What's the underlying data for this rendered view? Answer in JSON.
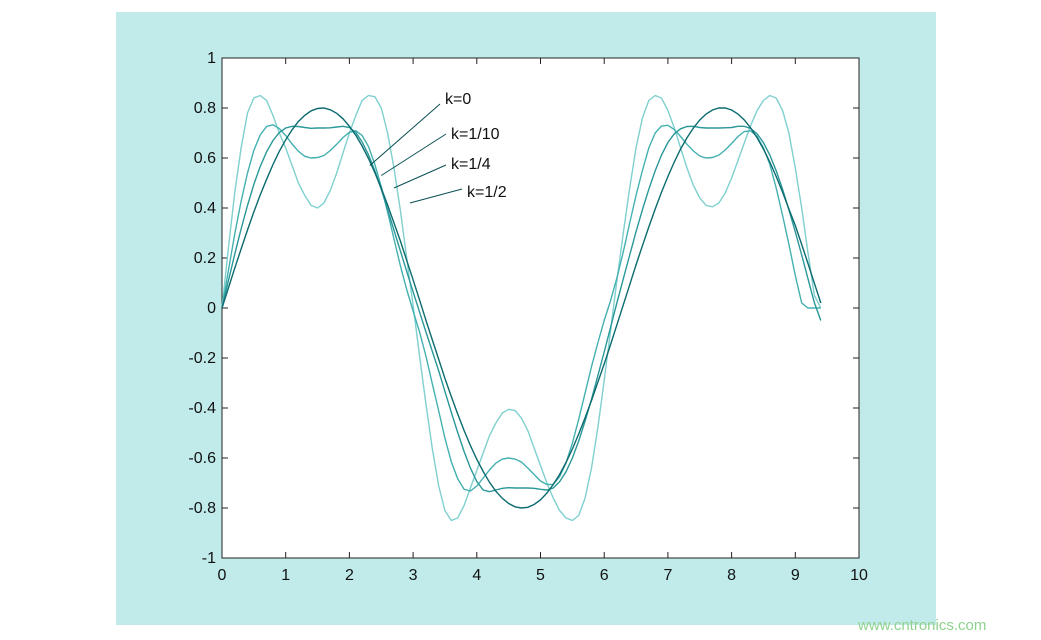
{
  "chart_data": {
    "type": "line",
    "xlim": [
      0,
      10
    ],
    "ylim": [
      -1,
      1
    ],
    "x_ticks": [
      "0",
      "1",
      "2",
      "3",
      "4",
      "5",
      "6",
      "7",
      "8",
      "9",
      "10"
    ],
    "y_ticks": [
      "1",
      "0.8",
      "0.6",
      "0.4",
      "0.2",
      "0",
      "-0.2",
      "-0.4",
      "-0.6",
      "-0.8",
      "-1"
    ],
    "grid": false,
    "x": [
      0,
      0.1,
      0.2,
      0.3,
      0.4,
      0.5,
      0.6,
      0.7,
      0.8,
      0.9,
      1.0,
      1.1,
      1.2,
      1.3,
      1.4,
      1.5,
      1.6,
      1.7,
      1.8,
      1.9,
      2.0,
      2.1,
      2.2,
      2.3,
      2.4,
      2.5,
      2.6,
      2.7,
      2.8,
      2.9,
      3.0,
      3.1,
      3.2,
      3.3,
      3.4,
      3.5,
      3.6,
      3.7,
      3.8,
      3.9,
      4.0,
      4.1,
      4.2,
      4.3,
      4.4,
      4.5,
      4.6,
      4.7,
      4.8,
      4.9,
      5.0,
      5.1,
      5.2,
      5.3,
      5.4,
      5.5,
      5.6,
      5.7,
      5.8,
      5.9,
      6.0,
      6.1,
      6.2,
      6.3,
      6.4,
      6.5,
      6.6,
      6.7,
      6.8,
      6.9,
      7.0,
      7.1,
      7.2,
      7.3,
      7.4,
      7.5,
      7.6,
      7.7,
      7.8,
      7.9,
      8.0,
      8.1,
      8.2,
      8.3,
      8.4,
      8.5,
      8.6,
      8.7,
      8.8,
      8.9,
      9.0,
      9.1,
      9.2,
      9.3,
      9.4
    ],
    "series": [
      {
        "label": "k=0",
        "color": "#0b6b6e",
        "values": [
          0,
          0.08,
          0.159,
          0.236,
          0.312,
          0.384,
          0.452,
          0.515,
          0.574,
          0.627,
          0.673,
          0.713,
          0.746,
          0.771,
          0.789,
          0.798,
          0.8,
          0.793,
          0.779,
          0.757,
          0.727,
          0.691,
          0.648,
          0.598,
          0.541,
          0.479,
          0.412,
          0.34,
          0.268,
          0.191,
          0.113,
          0.033,
          -0.047,
          -0.126,
          -0.204,
          -0.281,
          -0.354,
          -0.424,
          -0.49,
          -0.55,
          -0.605,
          -0.654,
          -0.697,
          -0.733,
          -0.761,
          -0.782,
          -0.795,
          -0.8,
          -0.797,
          -0.786,
          -0.767,
          -0.74,
          -0.706,
          -0.666,
          -0.618,
          -0.564,
          -0.504,
          -0.439,
          -0.37,
          -0.297,
          -0.224,
          -0.146,
          -0.067,
          0.013,
          0.093,
          0.172,
          0.249,
          0.324,
          0.396,
          0.463,
          0.526,
          0.584,
          0.636,
          0.681,
          0.72,
          0.752,
          0.776,
          0.792,
          0.8,
          0.8,
          0.792,
          0.776,
          0.752,
          0.72,
          0.681,
          0.636,
          0.584,
          0.526,
          0.463,
          0.396,
          0.33,
          0.254,
          0.178,
          0.099,
          0.02
        ]
      },
      {
        "label": "k=1/10",
        "color": "#2a9799",
        "values": [
          0,
          0.109,
          0.215,
          0.316,
          0.41,
          0.494,
          0.566,
          0.625,
          0.67,
          0.702,
          0.72,
          0.727,
          0.726,
          0.722,
          0.719,
          0.72,
          0.72,
          0.721,
          0.724,
          0.727,
          0.722,
          0.702,
          0.665,
          0.613,
          0.548,
          0.474,
          0.394,
          0.311,
          0.228,
          0.147,
          0.065,
          -0.015,
          -0.094,
          -0.172,
          -0.25,
          -0.333,
          -0.417,
          -0.498,
          -0.574,
          -0.64,
          -0.694,
          -0.728,
          -0.735,
          -0.728,
          -0.721,
          -0.719,
          -0.72,
          -0.72,
          -0.72,
          -0.721,
          -0.725,
          -0.728,
          -0.72,
          -0.695,
          -0.655,
          -0.6,
          -0.532,
          -0.452,
          -0.365,
          -0.271,
          -0.176,
          -0.077,
          0.021,
          0.117,
          0.212,
          0.305,
          0.393,
          0.475,
          0.549,
          0.612,
          0.662,
          0.697,
          0.717,
          0.726,
          0.727,
          0.722,
          0.72,
          0.72,
          0.72,
          0.721,
          0.722,
          0.727,
          0.727,
          0.718,
          0.697,
          0.662,
          0.612,
          0.549,
          0.475,
          0.393,
          0.305,
          0.212,
          0.117,
          0.021,
          -0.05
        ]
      },
      {
        "label": "k=1/4",
        "color": "#45b0b0",
        "values": [
          0,
          0.15,
          0.295,
          0.427,
          0.54,
          0.63,
          0.692,
          0.726,
          0.733,
          0.718,
          0.69,
          0.656,
          0.627,
          0.607,
          0.6,
          0.602,
          0.61,
          0.63,
          0.655,
          0.682,
          0.703,
          0.709,
          0.69,
          0.646,
          0.574,
          0.485,
          0.384,
          0.276,
          0.169,
          0.074,
          -0.012,
          -0.095,
          -0.19,
          -0.301,
          -0.41,
          -0.52,
          -0.615,
          -0.683,
          -0.725,
          -0.732,
          -0.712,
          -0.68,
          -0.648,
          -0.62,
          -0.604,
          -0.6,
          -0.604,
          -0.616,
          -0.64,
          -0.666,
          -0.692,
          -0.706,
          -0.705,
          -0.675,
          -0.62,
          -0.54,
          -0.445,
          -0.34,
          -0.235,
          -0.14,
          -0.05,
          0.03,
          0.12,
          0.225,
          0.34,
          0.45,
          0.55,
          0.64,
          0.7,
          0.728,
          0.731,
          0.714,
          0.686,
          0.655,
          0.628,
          0.608,
          0.6,
          0.602,
          0.612,
          0.632,
          0.658,
          0.686,
          0.706,
          0.709,
          0.686,
          0.641,
          0.575,
          0.48,
          0.37,
          0.255,
          0.13,
          0.02,
          0.0,
          0.0,
          0.0
        ]
      },
      {
        "label": "k=1/2",
        "color": "#7fd0cf",
        "values": [
          0,
          0.24,
          0.46,
          0.64,
          0.78,
          0.84,
          0.85,
          0.83,
          0.77,
          0.7,
          0.64,
          0.57,
          0.5,
          0.45,
          0.41,
          0.4,
          0.42,
          0.47,
          0.54,
          0.62,
          0.7,
          0.77,
          0.83,
          0.85,
          0.845,
          0.8,
          0.7,
          0.56,
          0.39,
          0.2,
          0.01,
          -0.19,
          -0.38,
          -0.56,
          -0.71,
          -0.81,
          -0.85,
          -0.84,
          -0.79,
          -0.72,
          -0.65,
          -0.58,
          -0.51,
          -0.46,
          -0.42,
          -0.405,
          -0.41,
          -0.44,
          -0.49,
          -0.56,
          -0.63,
          -0.7,
          -0.76,
          -0.81,
          -0.84,
          -0.85,
          -0.83,
          -0.76,
          -0.64,
          -0.48,
          -0.29,
          -0.09,
          0.11,
          0.3,
          0.48,
          0.64,
          0.76,
          0.83,
          0.85,
          0.84,
          0.79,
          0.72,
          0.64,
          0.56,
          0.49,
          0.44,
          0.41,
          0.405,
          0.42,
          0.46,
          0.52,
          0.59,
          0.66,
          0.73,
          0.79,
          0.83,
          0.85,
          0.84,
          0.79,
          0.7,
          0.56,
          0.4,
          0.22,
          0.05,
          0.0
        ]
      }
    ],
    "annotations": [
      {
        "text": "k=0",
        "points_to": [
          2.32,
          0.57
        ]
      },
      {
        "text": "k=1/10",
        "points_to": [
          2.5,
          0.53
        ]
      },
      {
        "text": "k=1/4",
        "points_to": [
          2.7,
          0.48
        ]
      },
      {
        "text": "k=1/2",
        "points_to": [
          2.95,
          0.42
        ]
      }
    ]
  },
  "watermark": "www.cntronics.com",
  "colors": {
    "frame_background": "#c1eaea",
    "axes_background": "#ffffff",
    "axis_color": "#222222",
    "watermark_color": "#8fd18f"
  }
}
